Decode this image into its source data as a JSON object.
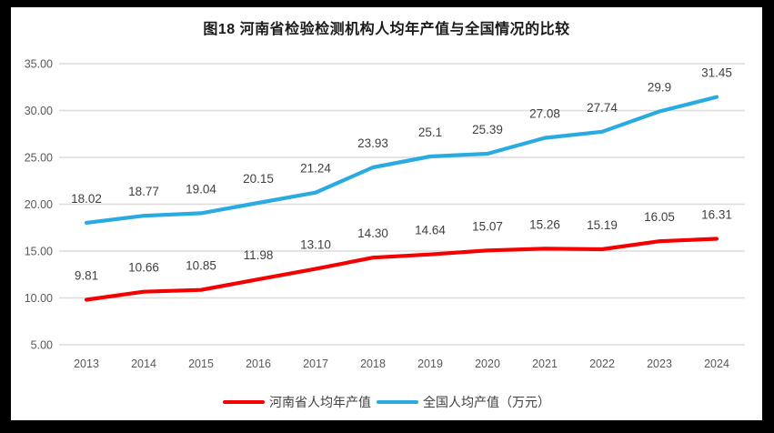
{
  "title": "图18  河南省检验检测机构人均年产值与全国情况的比较",
  "chart_data": {
    "type": "line",
    "categories": [
      "2013",
      "2014",
      "2015",
      "2016",
      "2017",
      "2018",
      "2019",
      "2020",
      "2021",
      "2022",
      "2023",
      "2024"
    ],
    "series": [
      {
        "name": "河南省人均年产值",
        "color": "#F40000",
        "values": [
          9.81,
          10.66,
          10.85,
          11.98,
          13.1,
          14.3,
          14.64,
          15.07,
          15.26,
          15.19,
          16.05,
          16.31
        ],
        "labels": [
          "9.81",
          "10.66",
          "10.85",
          "11.98",
          "13.10",
          "14.30",
          "14.64",
          "15.07",
          "15.26",
          "15.19",
          "16.05",
          "16.31"
        ]
      },
      {
        "name": "全国人均产值（万元）",
        "color": "#29ABE2",
        "values": [
          18.02,
          18.77,
          19.04,
          20.15,
          21.24,
          23.93,
          25.1,
          25.39,
          27.08,
          27.74,
          29.9,
          31.45
        ],
        "labels": [
          "18.02",
          "18.77",
          "19.04",
          "20.15",
          "21.24",
          "23.93",
          "25.1",
          "25.39",
          "27.08",
          "27.74",
          "29.9",
          "31.45"
        ]
      }
    ],
    "yticks": [
      "35.00",
      "30.00",
      "25.00",
      "20.00",
      "15.00",
      "10.00",
      "5.00"
    ],
    "ytick_values": [
      35,
      30,
      25,
      20,
      15,
      10,
      5
    ],
    "ylim": [
      5,
      35
    ],
    "xlabel": "",
    "ylabel": "",
    "grid": true,
    "legend_position": "bottom"
  },
  "legend": {
    "items": [
      {
        "label": "河南省人均年产值",
        "color": "#F40000"
      },
      {
        "label": "全国人均产值（万元）",
        "color": "#29ABE2"
      }
    ]
  },
  "colors": {
    "grid": "#DCDCDC",
    "axis_tick_text": "#595959",
    "data_label_text": "#404040",
    "frame_border": "#000000",
    "background": "#FFFFFF"
  }
}
